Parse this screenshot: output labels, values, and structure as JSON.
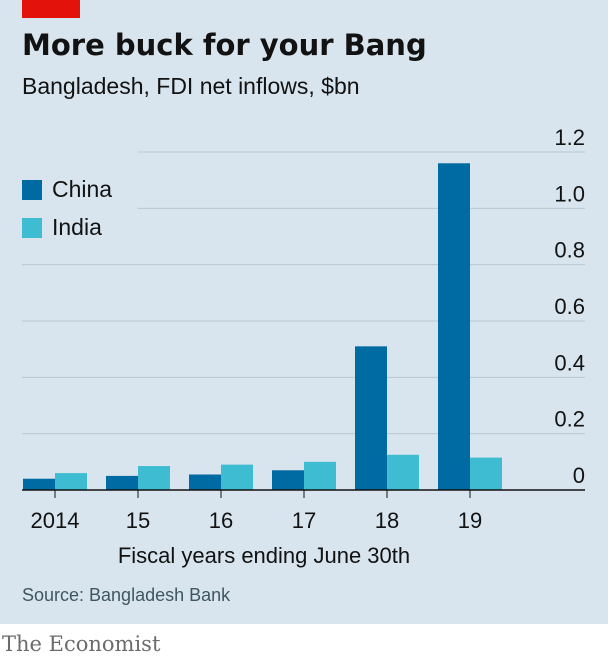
{
  "chart_data": {
    "type": "bar",
    "title": "More buck for your Bang",
    "subtitle": "Bangladesh, FDI net inflows, $bn",
    "xlabel": "Fiscal years ending June 30th",
    "ylabel": "",
    "categories": [
      "2014",
      "15",
      "16",
      "17",
      "18",
      "19"
    ],
    "series": [
      {
        "name": "China",
        "color": "#006ba2",
        "values": [
          0.04,
          0.05,
          0.055,
          0.07,
          0.51,
          1.16
        ]
      },
      {
        "name": "India",
        "color": "#3ebcd2",
        "values": [
          0.06,
          0.085,
          0.09,
          0.1,
          0.125,
          0.115
        ]
      }
    ],
    "ylim": [
      0,
      1.2
    ],
    "yticks": [
      "0",
      "0.2",
      "0.4",
      "0.6",
      "0.8",
      "1.0",
      "1.2"
    ],
    "ytick_values": [
      0,
      0.2,
      0.4,
      0.6,
      0.8,
      1.0,
      1.2
    ],
    "grid": true,
    "legend_position": "top-left",
    "y_axis_side": "right"
  },
  "source": "Source: Bangladesh Bank",
  "footer": "The Economist"
}
